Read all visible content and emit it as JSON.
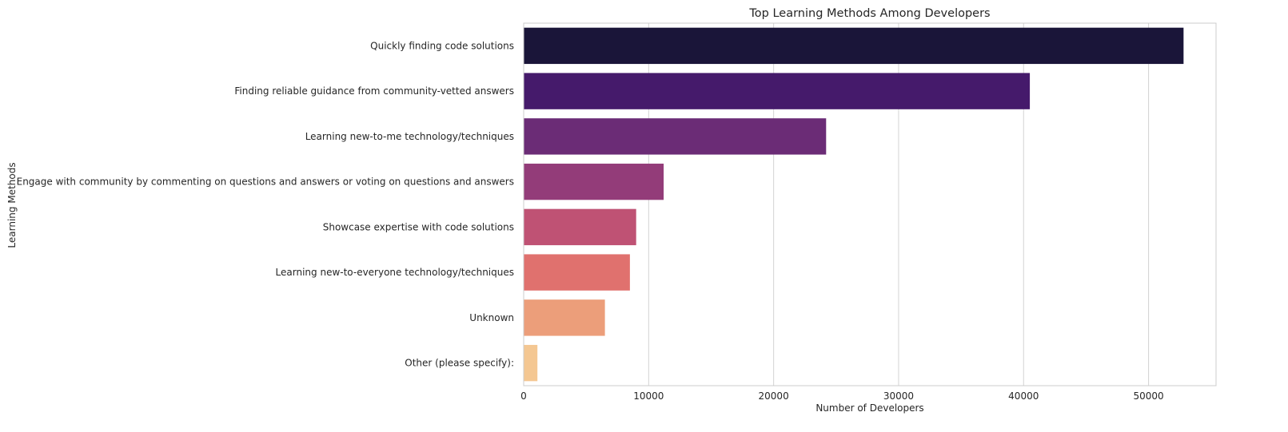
{
  "chart_data": {
    "type": "bar",
    "orientation": "horizontal",
    "title": "Top Learning Methods Among Developers",
    "xlabel": "Number of Developers",
    "ylabel": "Learning Methods",
    "categories": [
      "Quickly finding code solutions",
      "Finding reliable guidance from community-vetted answers",
      "Learning new-to-me technology/techniques",
      "Engage with community by commenting on questions and answers or voting on questions and answers",
      "Showcase expertise with code solutions",
      "Learning new-to-everyone technology/techniques",
      "Unknown",
      "Other (please specify):"
    ],
    "values": [
      52800,
      40500,
      24200,
      11200,
      9000,
      8500,
      6500,
      1100
    ],
    "xlim": [
      0,
      55400
    ],
    "xticks": [
      0,
      10000,
      20000,
      30000,
      40000,
      50000
    ],
    "xtick_labels": [
      "0",
      "10000",
      "20000",
      "30000",
      "40000",
      "50000"
    ],
    "grid": true,
    "palette": "magma",
    "colors": [
      "#1a1539",
      "#451a6b",
      "#6b2c76",
      "#933c79",
      "#bf5274",
      "#e0716e",
      "#ec9e7a",
      "#f4c792"
    ],
    "grid_color": "#d3d3d3",
    "axis_color": "#cccccc"
  }
}
